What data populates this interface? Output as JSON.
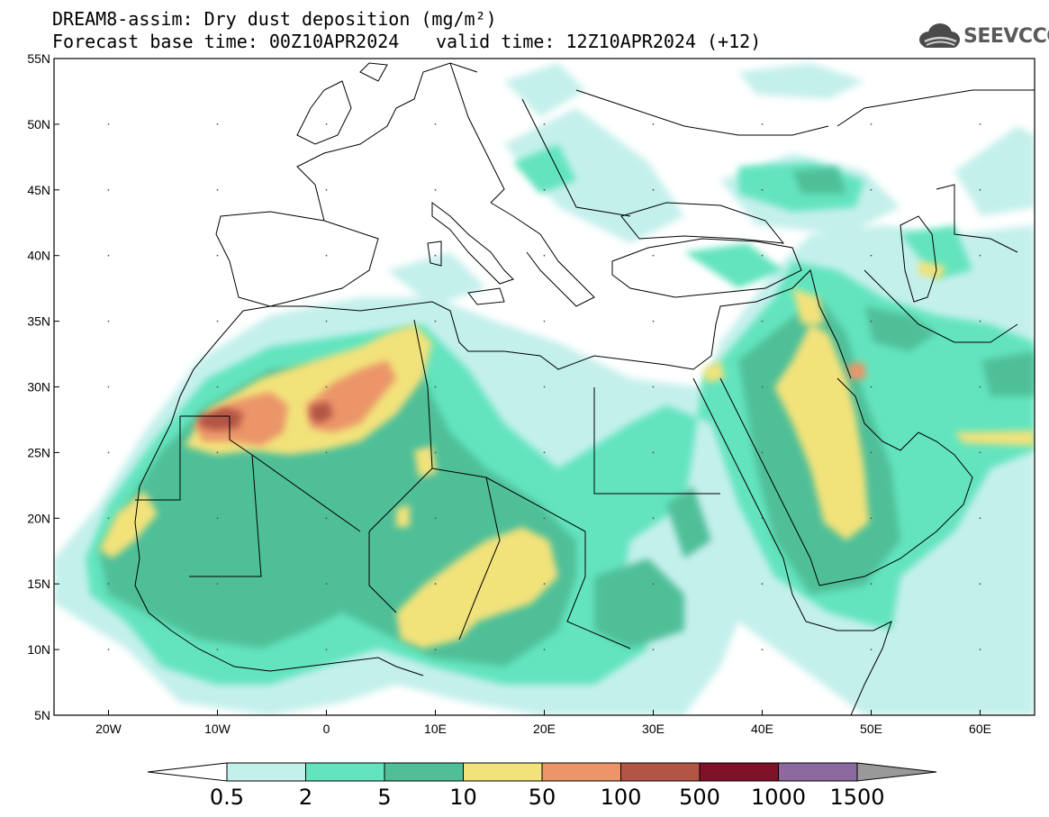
{
  "header": {
    "title_line1": "DREAM8-assim: Dry dust deposition (mg/m²)",
    "title_line2": "Forecast base time: 00Z10APR2024",
    "valid_time": "valid time: 12Z10APR2024 (+12)"
  },
  "logo": {
    "text": "SEEVCCC",
    "icon": "cloud-logo-icon"
  },
  "map": {
    "lon_range": [
      -25,
      65
    ],
    "lat_range": [
      5,
      55
    ],
    "lat_labels": [
      "5N",
      "10N",
      "15N",
      "20N",
      "25N",
      "30N",
      "35N",
      "40N",
      "45N",
      "50N",
      "55N"
    ],
    "lon_labels": [
      "20W",
      "10W",
      "0",
      "10E",
      "20E",
      "30E",
      "40E",
      "50E",
      "60E"
    ],
    "lon_label_values": [
      -20,
      -10,
      0,
      10,
      20,
      30,
      40,
      50,
      60
    ],
    "lat_label_values": [
      5,
      10,
      15,
      20,
      25,
      30,
      35,
      40,
      45,
      50,
      55
    ],
    "ocean_color": "#ffffff",
    "land_outline_color": "#000000"
  },
  "legend": {
    "labels": [
      "0.5",
      "2",
      "5",
      "10",
      "50",
      "100",
      "500",
      "1000",
      "1500"
    ],
    "colors": [
      "#c4f0ec",
      "#64e4be",
      "#4fbf98",
      "#f2e27a",
      "#eb9569",
      "#b35544",
      "#7d1229",
      "#8b6aa0",
      "#999999"
    ],
    "extend_low_color": "#ffffff",
    "extend_high_color": "#999999"
  }
}
